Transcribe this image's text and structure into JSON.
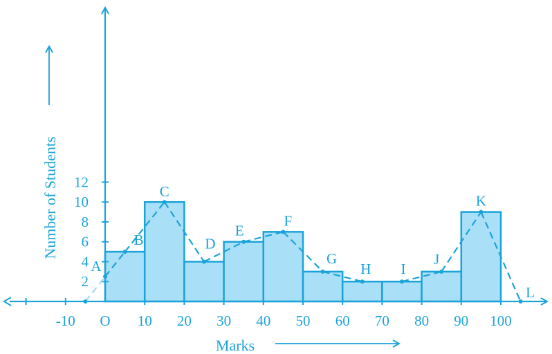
{
  "chart_data": {
    "type": "bar",
    "subtype": "histogram-with-frequency-polygon",
    "xlabel": "Marks",
    "ylabel": "Number of Students",
    "origin_label": "O",
    "x_ticks": [
      -10,
      10,
      20,
      30,
      40,
      50,
      60,
      70,
      80,
      90,
      100
    ],
    "y_ticks": [
      2,
      4,
      6,
      8,
      10,
      12
    ],
    "xlim": [
      -20,
      105
    ],
    "ylim": [
      0,
      14
    ],
    "bins": [
      {
        "from": 0,
        "to": 10,
        "value": 5
      },
      {
        "from": 10,
        "to": 20,
        "value": 10
      },
      {
        "from": 20,
        "to": 30,
        "value": 4
      },
      {
        "from": 30,
        "to": 40,
        "value": 6
      },
      {
        "from": 40,
        "to": 50,
        "value": 7
      },
      {
        "from": 50,
        "to": 60,
        "value": 3
      },
      {
        "from": 60,
        "to": 70,
        "value": 2
      },
      {
        "from": 70,
        "to": 80,
        "value": 2
      },
      {
        "from": 80,
        "to": 90,
        "value": 3
      },
      {
        "from": 90,
        "to": 100,
        "value": 9
      }
    ],
    "polygon_points": [
      {
        "label": "",
        "x": -5,
        "y": 0
      },
      {
        "label": "A",
        "x": 0,
        "y": 2.5
      },
      {
        "label": "B",
        "x": 5,
        "y": 5
      },
      {
        "label": "C",
        "x": 15,
        "y": 10
      },
      {
        "label": "D",
        "x": 25,
        "y": 4
      },
      {
        "label": "E",
        "x": 35,
        "y": 6
      },
      {
        "label": "F",
        "x": 45,
        "y": 7
      },
      {
        "label": "G",
        "x": 55,
        "y": 3
      },
      {
        "label": "H",
        "x": 65,
        "y": 2
      },
      {
        "label": "I",
        "x": 75,
        "y": 2
      },
      {
        "label": "J",
        "x": 85,
        "y": 3
      },
      {
        "label": "K",
        "x": 95,
        "y": 9
      },
      {
        "label": "L",
        "x": 105,
        "y": 0
      }
    ],
    "colors": {
      "axis": "#1aa3d9",
      "bar_fill": "#aadff8",
      "bar_stroke": "#1aa3d9",
      "polygon": "#1aa3d9",
      "polygon_faint": "#a8d8ef",
      "text": "#1aa3d9"
    },
    "grid": false,
    "legend": "none"
  }
}
